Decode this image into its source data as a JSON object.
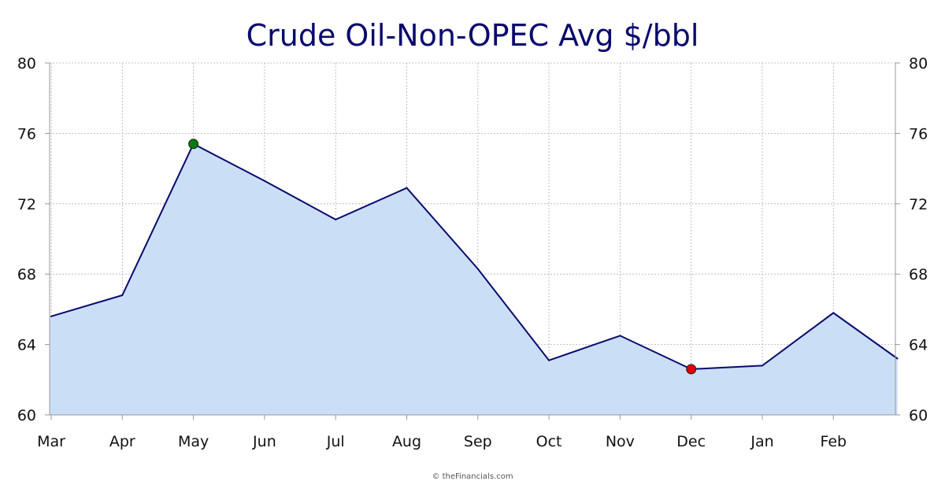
{
  "chart_data": {
    "type": "area",
    "title": "Crude Oil-Non-OPEC Avg $/bbl",
    "xlabel": "",
    "ylabel": "",
    "categories": [
      "Mar",
      "Apr",
      "May",
      "Jun",
      "Jul",
      "Aug",
      "Sep",
      "Oct",
      "Nov",
      "Dec",
      "Jan",
      "Feb"
    ],
    "x": [
      0,
      1,
      2,
      3,
      4,
      5,
      6,
      7,
      8,
      9,
      10,
      11,
      11.9
    ],
    "values": [
      65.6,
      66.8,
      75.4,
      73.3,
      71.1,
      72.9,
      68.3,
      63.1,
      64.5,
      62.6,
      62.8,
      65.8,
      63.2
    ],
    "ylim": [
      60,
      80
    ],
    "yticks": [
      60,
      64,
      68,
      72,
      76,
      80
    ],
    "y_axis_sides": "left and right",
    "grid": true,
    "max_marker": {
      "category": "May",
      "value": 75.4,
      "color": "#0a7a0a"
    },
    "min_marker": {
      "category": "Dec",
      "value": 62.6,
      "color": "#e00000"
    },
    "colors": {
      "line": "#0a0a6e",
      "fill": "#cadff6",
      "grid": "#b0b0b0",
      "axis": "#999999"
    }
  },
  "credit": "© theFinancials.com"
}
